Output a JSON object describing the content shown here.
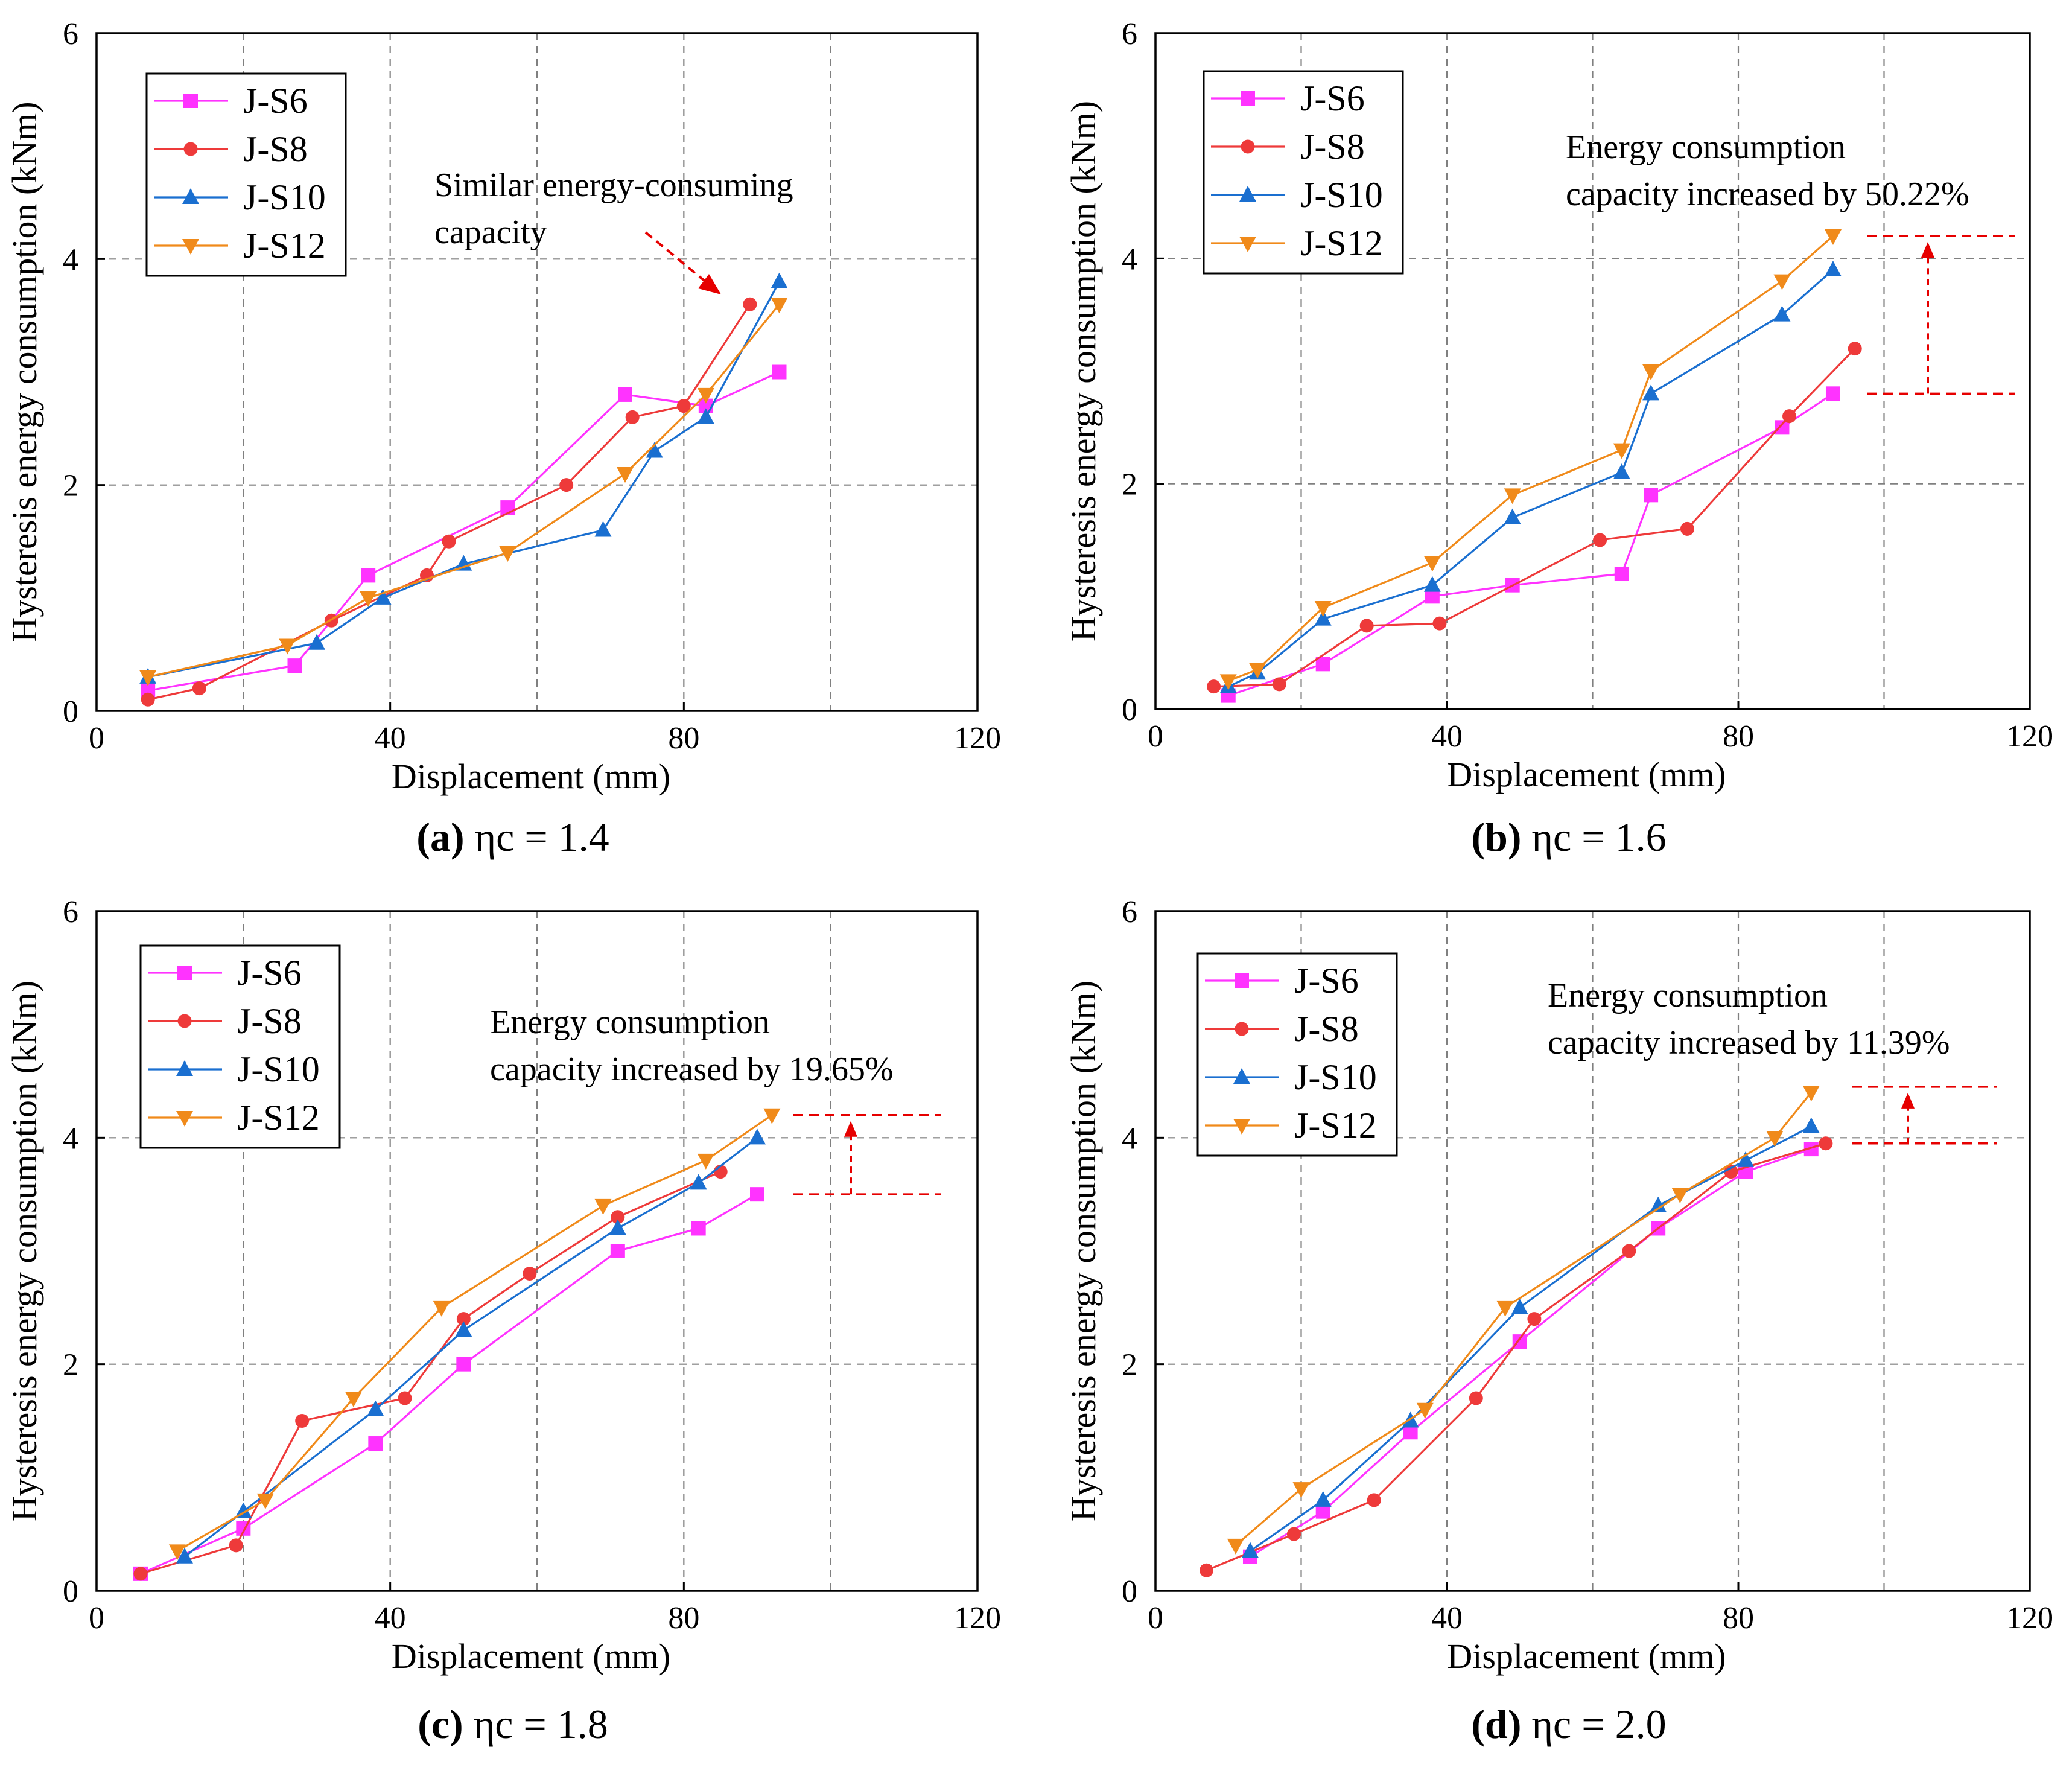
{
  "colors": {
    "J-S6": "#ff33ff",
    "J-S8": "#ee3a3a",
    "J-S10": "#1a6fd0",
    "J-S12": "#f08a1a",
    "annotation": "#e60000"
  },
  "chart_data": [
    {
      "type": "line",
      "panel": "a",
      "caption": {
        "letter": "(a)",
        "text": "ηc = 1.4"
      },
      "xlabel": "Displacement (mm)",
      "ylabel": "Hysteresis energy consumption (kNm)",
      "xlim": [
        0,
        120
      ],
      "ylim": [
        0,
        6
      ],
      "xticks": [
        0,
        40,
        80,
        120
      ],
      "yticks": [
        0,
        2,
        4,
        6
      ],
      "grid": true,
      "legend": "top-left",
      "series": [
        {
          "name": "J-S6",
          "marker": "square",
          "x": [
            7,
            27,
            37,
            56,
            72,
            83,
            93
          ],
          "y": [
            0.18,
            0.4,
            1.2,
            1.8,
            2.8,
            2.7,
            3.0
          ]
        },
        {
          "name": "J-S8",
          "marker": "circle",
          "x": [
            7,
            14,
            32,
            45,
            48,
            64,
            73,
            80,
            89
          ],
          "y": [
            0.1,
            0.2,
            0.8,
            1.2,
            1.5,
            2.0,
            2.6,
            2.7,
            3.6
          ]
        },
        {
          "name": "J-S10",
          "marker": "triangle-up",
          "x": [
            7,
            30,
            39,
            50,
            69,
            76,
            83,
            93
          ],
          "y": [
            0.3,
            0.6,
            1.0,
            1.3,
            1.6,
            2.3,
            2.6,
            3.8
          ]
        },
        {
          "name": "J-S12",
          "marker": "triangle-down",
          "x": [
            7,
            26,
            37,
            56,
            72,
            83,
            93
          ],
          "y": [
            0.3,
            0.58,
            1.0,
            1.4,
            2.1,
            2.8,
            3.6
          ]
        }
      ],
      "annotation": {
        "lines": [
          "Similar energy-consuming",
          "capacity"
        ]
      }
    },
    {
      "type": "line",
      "panel": "b",
      "caption": {
        "letter": "(b)",
        "text": "ηc = 1.6"
      },
      "xlabel": "Displacement (mm)",
      "ylabel": "Hysteresis energy consumption (kNm)",
      "xlim": [
        0,
        120
      ],
      "ylim": [
        0,
        6
      ],
      "xticks": [
        0,
        40,
        80,
        120
      ],
      "yticks": [
        0,
        2,
        4,
        6
      ],
      "grid": true,
      "legend": "top-left",
      "series": [
        {
          "name": "J-S6",
          "marker": "square",
          "x": [
            10,
            23,
            38,
            49,
            64,
            68,
            86,
            93
          ],
          "y": [
            0.12,
            0.4,
            1.0,
            1.1,
            1.2,
            1.9,
            2.5,
            2.8
          ]
        },
        {
          "name": "J-S8",
          "marker": "circle",
          "x": [
            8,
            17,
            29,
            39,
            61,
            73,
            87,
            96
          ],
          "y": [
            0.2,
            0.22,
            0.74,
            0.76,
            1.5,
            1.6,
            2.6,
            3.2
          ]
        },
        {
          "name": "J-S10",
          "marker": "triangle-up",
          "x": [
            10,
            14,
            23,
            38,
            49,
            64,
            68,
            86,
            93
          ],
          "y": [
            0.2,
            0.32,
            0.8,
            1.1,
            1.7,
            2.1,
            2.8,
            3.5,
            3.9
          ]
        },
        {
          "name": "J-S12",
          "marker": "triangle-down",
          "x": [
            10,
            14,
            23,
            38,
            49,
            64,
            68,
            86,
            93
          ],
          "y": [
            0.25,
            0.35,
            0.9,
            1.3,
            1.9,
            2.3,
            3.0,
            3.8,
            4.2
          ]
        }
      ],
      "annotation": {
        "lines": [
          "Energy consumption",
          "capacity increased by 50.22%"
        ],
        "from": 2.8,
        "to": 4.2
      }
    },
    {
      "type": "line",
      "panel": "c",
      "caption": {
        "letter": "(c)",
        "text": "ηc = 1.8"
      },
      "xlabel": "Displacement (mm)",
      "ylabel": "Hysteresis energy consumption (kNm)",
      "xlim": [
        0,
        120
      ],
      "ylim": [
        0,
        6
      ],
      "xticks": [
        0,
        40,
        80,
        120
      ],
      "yticks": [
        0,
        2,
        4,
        6
      ],
      "grid": true,
      "legend": "top-left",
      "series": [
        {
          "name": "J-S6",
          "marker": "square",
          "x": [
            6,
            20,
            38,
            50,
            71,
            82,
            90
          ],
          "y": [
            0.15,
            0.55,
            1.3,
            2.0,
            3.0,
            3.2,
            3.5
          ]
        },
        {
          "name": "J-S8",
          "marker": "circle",
          "x": [
            6,
            19,
            28,
            42,
            50,
            59,
            71,
            85
          ],
          "y": [
            0.15,
            0.4,
            1.5,
            1.7,
            2.4,
            2.8,
            3.3,
            3.7
          ]
        },
        {
          "name": "J-S10",
          "marker": "triangle-up",
          "x": [
            12,
            20,
            38,
            50,
            71,
            82,
            90
          ],
          "y": [
            0.3,
            0.7,
            1.6,
            2.3,
            3.2,
            3.6,
            4.0
          ]
        },
        {
          "name": "J-S12",
          "marker": "triangle-down",
          "x": [
            11,
            23,
            35,
            47,
            69,
            83,
            92
          ],
          "y": [
            0.35,
            0.8,
            1.7,
            2.5,
            3.4,
            3.8,
            4.2
          ]
        }
      ],
      "annotation": {
        "lines": [
          "Energy consumption",
          "capacity increased by 19.65%"
        ],
        "from": 3.5,
        "to": 4.2
      }
    },
    {
      "type": "line",
      "panel": "d",
      "caption": {
        "letter": "(d)",
        "text": "ηc = 2.0"
      },
      "xlabel": "Displacement (mm)",
      "ylabel": "Hysteresis energy consumption (kNm)",
      "xlim": [
        0,
        120
      ],
      "ylim": [
        0,
        6
      ],
      "xticks": [
        0,
        40,
        80,
        120
      ],
      "yticks": [
        0,
        2,
        4,
        6
      ],
      "grid": true,
      "legend": "top-left",
      "series": [
        {
          "name": "J-S6",
          "marker": "square",
          "x": [
            13,
            23,
            35,
            50,
            69,
            81,
            90
          ],
          "y": [
            0.3,
            0.7,
            1.4,
            2.2,
            3.2,
            3.7,
            3.9
          ]
        },
        {
          "name": "J-S8",
          "marker": "circle",
          "x": [
            7,
            19,
            30,
            44,
            52,
            65,
            79,
            92
          ],
          "y": [
            0.18,
            0.5,
            0.8,
            1.7,
            2.4,
            3.0,
            3.7,
            3.95
          ]
        },
        {
          "name": "J-S10",
          "marker": "triangle-up",
          "x": [
            13,
            23,
            35,
            50,
            69,
            81,
            90
          ],
          "y": [
            0.35,
            0.8,
            1.5,
            2.5,
            3.4,
            3.8,
            4.1
          ]
        },
        {
          "name": "J-S12",
          "marker": "triangle-down",
          "x": [
            11,
            20,
            37,
            48,
            72,
            85,
            90
          ],
          "y": [
            0.4,
            0.9,
            1.6,
            2.5,
            3.5,
            4.0,
            4.4
          ]
        }
      ],
      "annotation": {
        "lines": [
          "Energy consumption",
          "capacity increased by 11.39%"
        ],
        "from": 3.95,
        "to": 4.45
      }
    }
  ]
}
